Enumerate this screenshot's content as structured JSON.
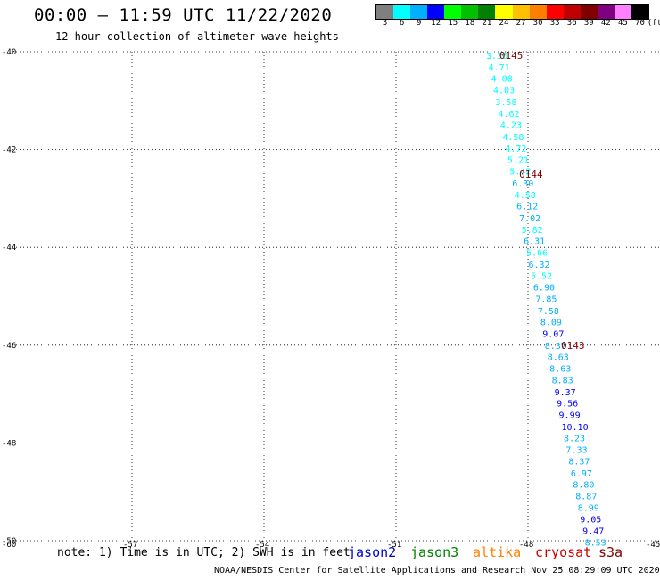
{
  "header": {
    "title": "00:00 – 11:59 UTC 11/22/2020",
    "subtitle": "12 hour collection of altimeter wave heights"
  },
  "colorbar": {
    "colors": [
      "#7f7f7f",
      "#00ffff",
      "#00b0ff",
      "#0000ff",
      "#00ff00",
      "#00c000",
      "#008000",
      "#ffff00",
      "#ffc000",
      "#ff8000",
      "#ff0000",
      "#c00000",
      "#800000",
      "#800080",
      "#ff80ff",
      "#000000"
    ],
    "labels": [
      "3",
      "6",
      "9",
      "12",
      "15",
      "18",
      "21",
      "24",
      "27",
      "30",
      "33",
      "36",
      "39",
      "42",
      "45",
      "70",
      "(ft)"
    ]
  },
  "map": {
    "lat_labels": [
      "-40",
      "-42",
      "-44",
      "-46",
      "-48",
      "-50"
    ],
    "lon_labels": [
      "-60",
      "-57",
      "-54",
      "-51",
      "-48",
      "-45"
    ],
    "pass_labels": [
      "0145",
      "0144",
      "0143"
    ]
  },
  "chart_data": {
    "type": "scatter",
    "title": "00:00 – 11:59 UTC 11/22/2020",
    "subtitle": "12 hour collection of altimeter wave heights",
    "xlabel": "",
    "ylabel": "",
    "xlim": [
      -60,
      -45
    ],
    "ylim": [
      -50,
      -40
    ],
    "grid": true,
    "x_ticks": [
      -57,
      -54,
      -51,
      -48,
      -45
    ],
    "y_ticks": [
      -40,
      -42,
      -44,
      -46,
      -48,
      -50
    ],
    "points": [
      {
        "lon": -48.95,
        "lat": -40.07,
        "text": "3.36",
        "color": "#00ffff"
      },
      {
        "lon": -48.9,
        "lat": -40.31,
        "text": "4.71",
        "color": "#00ffff"
      },
      {
        "lon": -48.84,
        "lat": -40.54,
        "text": "4.08",
        "color": "#00ffff"
      },
      {
        "lon": -48.79,
        "lat": -40.78,
        "text": "4.03",
        "color": "#00ffff"
      },
      {
        "lon": -48.74,
        "lat": -41.02,
        "text": "3.58",
        "color": "#00ffff"
      },
      {
        "lon": -48.68,
        "lat": -41.26,
        "text": "4.62",
        "color": "#00ffff"
      },
      {
        "lon": -48.63,
        "lat": -41.49,
        "text": "4.23",
        "color": "#00ffff"
      },
      {
        "lon": -48.58,
        "lat": -41.73,
        "text": "4.58",
        "color": "#00ffff"
      },
      {
        "lon": -48.52,
        "lat": -41.97,
        "text": "4.72",
        "color": "#00ffff"
      },
      {
        "lon": -48.47,
        "lat": -42.2,
        "text": "5.21",
        "color": "#00ffff"
      },
      {
        "lon": -48.42,
        "lat": -42.44,
        "text": "5.42",
        "color": "#00ffff"
      },
      {
        "lon": -48.36,
        "lat": -42.68,
        "text": "6.30",
        "color": "#00b0ff"
      },
      {
        "lon": -48.31,
        "lat": -42.92,
        "text": "4.58",
        "color": "#00ffff"
      },
      {
        "lon": -48.26,
        "lat": -43.15,
        "text": "6.12",
        "color": "#00b0ff"
      },
      {
        "lon": -48.2,
        "lat": -43.39,
        "text": "7.02",
        "color": "#00b0ff"
      },
      {
        "lon": -48.15,
        "lat": -43.63,
        "text": "5.82",
        "color": "#00ffff"
      },
      {
        "lon": -48.1,
        "lat": -43.86,
        "text": "6.31",
        "color": "#00b0ff"
      },
      {
        "lon": -48.04,
        "lat": -44.1,
        "text": "5.66",
        "color": "#00ffff"
      },
      {
        "lon": -47.99,
        "lat": -44.34,
        "text": "6.32",
        "color": "#00b0ff"
      },
      {
        "lon": -47.94,
        "lat": -44.57,
        "text": "5.52",
        "color": "#00ffff"
      },
      {
        "lon": -47.88,
        "lat": -44.81,
        "text": "6.90",
        "color": "#00b0ff"
      },
      {
        "lon": -47.83,
        "lat": -45.05,
        "text": "7.85",
        "color": "#00b0ff"
      },
      {
        "lon": -47.78,
        "lat": -45.29,
        "text": "7.58",
        "color": "#00b0ff"
      },
      {
        "lon": -47.72,
        "lat": -45.52,
        "text": "8.09",
        "color": "#00b0ff"
      },
      {
        "lon": -47.67,
        "lat": -45.76,
        "text": "9.07",
        "color": "#0000ff"
      },
      {
        "lon": -47.62,
        "lat": -46.0,
        "text": "8.37",
        "color": "#00b0ff"
      },
      {
        "lon": -47.56,
        "lat": -46.23,
        "text": "8.63",
        "color": "#00b0ff"
      },
      {
        "lon": -47.51,
        "lat": -46.47,
        "text": "8.63",
        "color": "#00b0ff"
      },
      {
        "lon": -47.46,
        "lat": -46.71,
        "text": "8.83",
        "color": "#00b0ff"
      },
      {
        "lon": -47.4,
        "lat": -46.95,
        "text": "9.37",
        "color": "#0000ff"
      },
      {
        "lon": -47.35,
        "lat": -47.18,
        "text": "9.56",
        "color": "#0000ff"
      },
      {
        "lon": -47.3,
        "lat": -47.42,
        "text": "9.99",
        "color": "#0000ff"
      },
      {
        "lon": -47.24,
        "lat": -47.66,
        "text": "10.10",
        "color": "#0000ff"
      },
      {
        "lon": -47.19,
        "lat": -47.89,
        "text": "8.23",
        "color": "#00b0ff"
      },
      {
        "lon": -47.14,
        "lat": -48.13,
        "text": "7.33",
        "color": "#00b0ff"
      },
      {
        "lon": -47.08,
        "lat": -48.37,
        "text": "8.37",
        "color": "#00b0ff"
      },
      {
        "lon": -47.03,
        "lat": -48.61,
        "text": "6.97",
        "color": "#00b0ff"
      },
      {
        "lon": -46.98,
        "lat": -48.84,
        "text": "8.80",
        "color": "#00b0ff"
      },
      {
        "lon": -46.92,
        "lat": -49.08,
        "text": "8.87",
        "color": "#00b0ff"
      },
      {
        "lon": -46.87,
        "lat": -49.32,
        "text": "8.99",
        "color": "#00b0ff"
      },
      {
        "lon": -46.82,
        "lat": -49.55,
        "text": "9.05",
        "color": "#0000ff"
      },
      {
        "lon": -46.76,
        "lat": -49.79,
        "text": "9.47",
        "color": "#0000ff"
      },
      {
        "lon": -46.71,
        "lat": -50.03,
        "text": "8.53",
        "color": "#00b0ff"
      }
    ],
    "pass_labels": [
      {
        "lon": -48.65,
        "lat": -40.07,
        "text": "0145"
      },
      {
        "lon": -48.2,
        "lat": -42.5,
        "text": "0144"
      },
      {
        "lon": -47.25,
        "lat": -46.0,
        "text": "0143"
      }
    ]
  },
  "footer": {
    "note": "note: 1) Time is in UTC; 2) SWH is in feet",
    "satellites": [
      {
        "name": "jason2",
        "color": "#0000cc"
      },
      {
        "name": "jason3",
        "color": "#008000"
      },
      {
        "name": "altika",
        "color": "#ff8000"
      },
      {
        "name": "cryosat",
        "color": "#cc0000"
      },
      {
        "name": "s3a",
        "color": "#800000"
      }
    ],
    "credit": "NOAA/NESDIS Center for Satellite Applications and Research    Nov 25 08:29:09 UTC 2020"
  }
}
